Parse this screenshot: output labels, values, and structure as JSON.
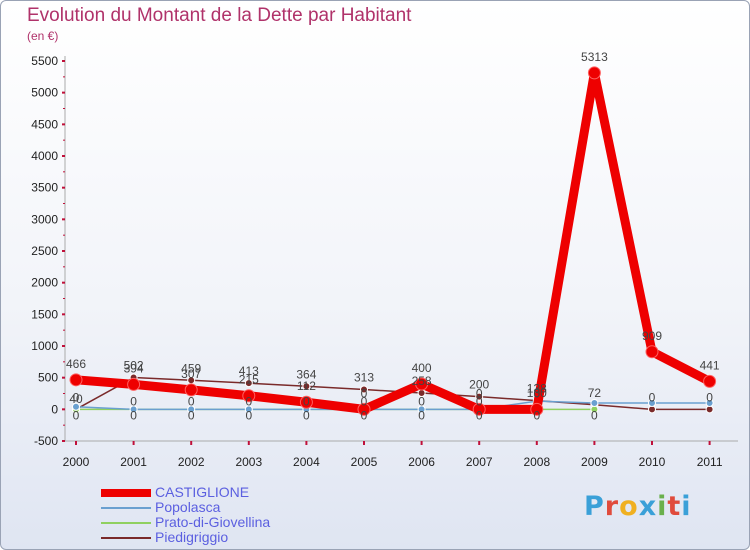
{
  "header": {
    "title": "Evolution du Montant de la Dette par Habitant",
    "subtitle": "(en €)"
  },
  "logo": {
    "text": "Proxiti",
    "colors": [
      "#3aa0d8",
      "#e04b3c",
      "#f0b020",
      "#3aa0d8",
      "#6ab04c",
      "#e04b3c",
      "#3aa0d8"
    ]
  },
  "chart_data": {
    "type": "line",
    "title": "Evolution du Montant de la Dette par Habitant",
    "ylabel": "(en €)",
    "xlabel": "",
    "ylim": [
      -500,
      5500
    ],
    "yticks": [
      -500,
      0,
      500,
      1000,
      1500,
      2000,
      2500,
      3000,
      3500,
      4000,
      4500,
      5000,
      5500
    ],
    "categories": [
      "2000",
      "2001",
      "2002",
      "2003",
      "2004",
      "2005",
      "2006",
      "2007",
      "2008",
      "2009",
      "2010",
      "2011"
    ],
    "series": [
      {
        "name": "Piedigriggio",
        "color": "#7a2a2a",
        "values": [
          0,
          502,
          459,
          413,
          364,
          313,
          258,
          200,
          138,
          72,
          0,
          0
        ],
        "labels": [
          "0",
          "502",
          "459",
          "413",
          "364",
          "313",
          "258",
          "200",
          "138",
          "72",
          "0",
          "0"
        ]
      },
      {
        "name": "Prato-di-Giovellina",
        "color": "#90d060",
        "values": [
          0,
          0,
          0,
          0,
          0,
          0,
          0,
          0,
          0,
          0,
          null,
          null
        ],
        "labels": [
          "0",
          "0",
          "0",
          "0",
          "0",
          "0",
          "0",
          "0",
          "0",
          "0",
          "",
          ""
        ]
      },
      {
        "name": "Popolasca",
        "color": "#6aa0d0",
        "values": [
          40,
          0,
          0,
          0,
          0,
          0,
          0,
          0,
          130,
          100,
          100,
          100
        ],
        "labels": [
          "40",
          "0",
          "0",
          "0",
          "0",
          "0",
          "0",
          "0",
          "130",
          "",
          "",
          ""
        ]
      },
      {
        "name": "CASTIGLIONE",
        "color": "#ee0000",
        "values": [
          466,
          394,
          307,
          215,
          112,
          0,
          400,
          0,
          0,
          5313,
          909,
          441
        ],
        "labels": [
          "466",
          "394",
          "307",
          "215",
          "112",
          "0",
          "400",
          "0",
          "0",
          "5313",
          "909",
          "441"
        ]
      }
    ],
    "legend": [
      {
        "name": "CASTIGLIONE",
        "color": "#ee0000"
      },
      {
        "name": "Popolasca",
        "color": "#6aa0d0"
      },
      {
        "name": "Prato-di-Giovellina",
        "color": "#90d060"
      },
      {
        "name": "Piedigriggio",
        "color": "#7a2a2a"
      }
    ],
    "legend_position": "bottom-left"
  }
}
